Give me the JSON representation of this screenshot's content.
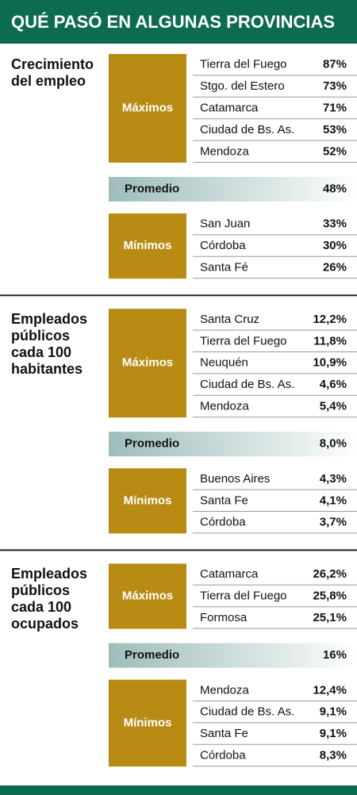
{
  "header": {
    "title": "QUÉ PASÓ EN ALGUNAS PROVINCIAS"
  },
  "sections": [
    {
      "title": [
        "Crecimiento",
        "del empleo"
      ],
      "max": {
        "label": "Máximos",
        "rows": [
          [
            "Tierra del Fuego",
            "87%"
          ],
          [
            "Stgo. del Estero",
            "73%"
          ],
          [
            "Catamarca",
            "71%"
          ],
          [
            "Ciudad de Bs. As.",
            "53%"
          ],
          [
            "Mendoza",
            "52%"
          ]
        ]
      },
      "average": {
        "label": "Promedio",
        "value": "48%"
      },
      "min": {
        "label": "Mínimos",
        "rows": [
          [
            "San Juan",
            "33%"
          ],
          [
            "Córdoba",
            "30%"
          ],
          [
            "Santa Fé",
            "26%"
          ]
        ]
      }
    },
    {
      "title": [
        "Empleados",
        "públicos",
        "cada 100",
        "habitantes"
      ],
      "max": {
        "label": "Máximos",
        "rows": [
          [
            "Santa Cruz",
            "12,2%"
          ],
          [
            "Tierra del Fuego",
            "11,8%"
          ],
          [
            "Neuquén",
            "10,9%"
          ],
          [
            "Ciudad de Bs. As.",
            "4,6%"
          ],
          [
            "Mendoza",
            "5,4%"
          ]
        ]
      },
      "average": {
        "label": "Promedio",
        "value": "8,0%"
      },
      "min": {
        "label": "Mínimos",
        "rows": [
          [
            "Buenos Aires",
            "4,3%"
          ],
          [
            "Santa Fe",
            "4,1%"
          ],
          [
            "Córdoba",
            "3,7%"
          ]
        ]
      }
    },
    {
      "title": [
        "Empleados",
        "públicos",
        "cada 100",
        "ocupados"
      ],
      "max": {
        "label": "Máximos",
        "rows": [
          [
            "Catamarca",
            "26,2%"
          ],
          [
            "Tierra del Fuego",
            "25,8%"
          ],
          [
            "Formosa",
            "25,1%"
          ]
        ]
      },
      "average": {
        "label": "Promedio",
        "value": "16%"
      },
      "min": {
        "label": "Mínimos",
        "rows": [
          [
            "Mendoza",
            "12,4%"
          ],
          [
            "Ciudad de Bs. As.",
            "9,1%"
          ],
          [
            "Santa Fe",
            "9,1%"
          ],
          [
            "Córdoba",
            "8,3%"
          ]
        ]
      }
    }
  ]
}
